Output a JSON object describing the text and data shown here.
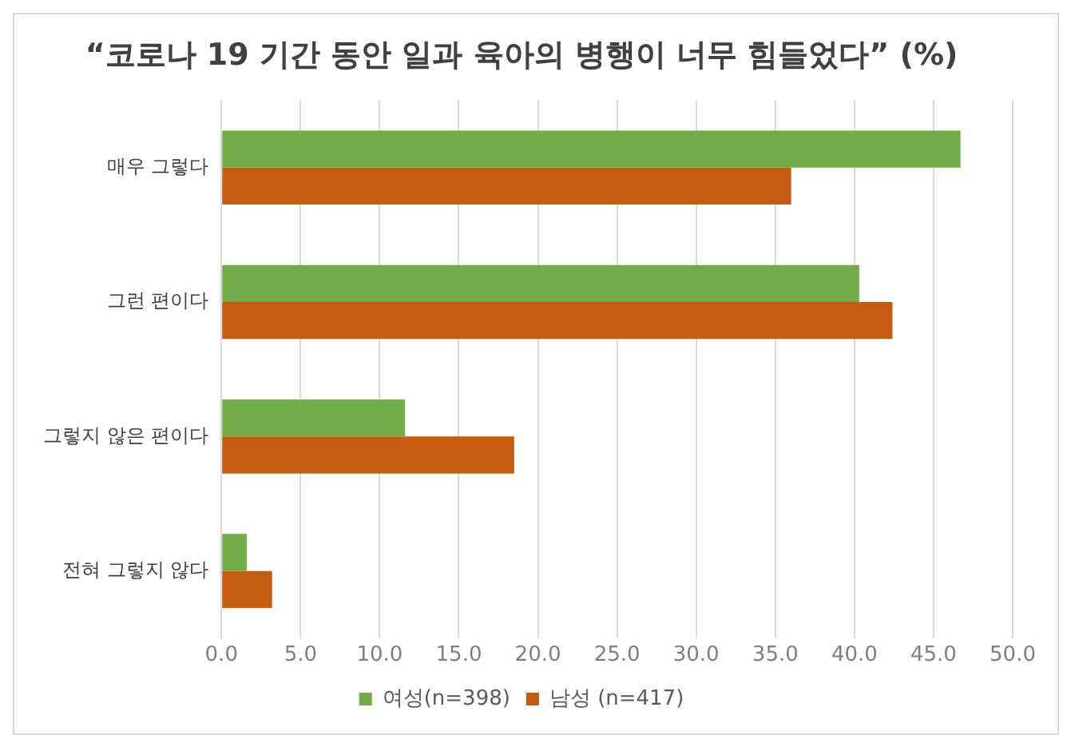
{
  "chart_data": {
    "type": "bar",
    "orientation": "horizontal",
    "title": "“코로나 19 기간 동안 일과 육아의 병행이 너무 힘들었다” (%)",
    "categories": [
      "매우 그렇다",
      "그런 편이다",
      "그렇지 않은 편이다",
      "전혀 그렇지 않다"
    ],
    "series": [
      {
        "name": "여성(n=398)",
        "color": "#70ad47",
        "values": [
          46.7,
          40.3,
          11.6,
          1.6
        ]
      },
      {
        "name": "남성 (n=417)",
        "color": "#c55a11",
        "values": [
          36.0,
          42.4,
          18.5,
          3.2
        ]
      }
    ],
    "xlim": [
      0,
      50
    ],
    "xticks": [
      {
        "value": 0,
        "label": "0.0"
      },
      {
        "value": 5,
        "label": "5.0"
      },
      {
        "value": 10,
        "label": "10.0"
      },
      {
        "value": 15,
        "label": "15.0"
      },
      {
        "value": 20,
        "label": "20.0"
      },
      {
        "value": 25,
        "label": "25.0"
      },
      {
        "value": 30,
        "label": "30.0"
      },
      {
        "value": 35,
        "label": "35.0"
      },
      {
        "value": 40,
        "label": "40.0"
      },
      {
        "value": 45,
        "label": "45.0"
      },
      {
        "value": 50,
        "label": "50.0"
      }
    ],
    "grid": "x",
    "legend": "bottom"
  }
}
